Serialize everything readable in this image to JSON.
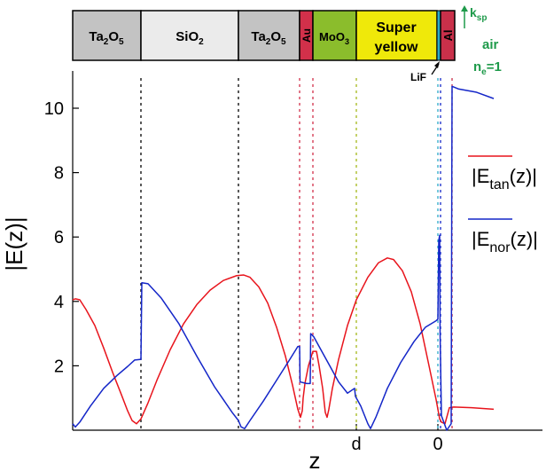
{
  "chart_data": {
    "type": "line",
    "xlabel": "z",
    "ylabel": "|E(z)|",
    "ylim": [
      0,
      11
    ],
    "yticks": [
      2,
      4,
      6,
      8,
      10
    ],
    "xtick_labels": [
      "d",
      "0"
    ],
    "layers": [
      {
        "name_main": "Ta",
        "sub1": "2",
        "mid": "O",
        "sub2": "5",
        "color": "#c3c3c3"
      },
      {
        "name_main": "SiO",
        "sub1": "2",
        "mid": "",
        "sub2": "",
        "color": "#ebebeb"
      },
      {
        "name_main": "Ta",
        "sub1": "2",
        "mid": "O",
        "sub2": "5",
        "color": "#c3c3c3"
      },
      {
        "name_main": "Au",
        "sub1": "",
        "mid": "",
        "sub2": "",
        "color": "#d2304a"
      },
      {
        "name_main": "MoO",
        "sub1": "3",
        "mid": "",
        "sub2": "",
        "color": "#8bbd2c"
      },
      {
        "name_main": "Super",
        "line2": "yellow",
        "color": "#efe90a"
      },
      {
        "name_main": "",
        "color": "#2aa9c8"
      },
      {
        "name_main": "Al",
        "color": "#c9304a"
      }
    ],
    "lif_label": "LiF",
    "air_label": "air",
    "k_label": "k",
    "k_sub": "sp",
    "n_label": "n",
    "n_sub": "e",
    "n_value": "=1",
    "legend": [
      {
        "name_main": "|E",
        "sub": "tan",
        "tail": "(z)|",
        "color": "#e8141c"
      },
      {
        "name_main": "|E",
        "sub": "nor",
        "tail": "(z)|",
        "color": "#1426c8"
      }
    ],
    "series": [
      {
        "key": "tan",
        "color": "#e8141c",
        "points": [
          [
            0,
            4.05
          ],
          [
            3,
            4.08
          ],
          [
            8,
            4.05
          ],
          [
            15,
            3.75
          ],
          [
            25,
            3.25
          ],
          [
            35,
            2.55
          ],
          [
            45,
            1.8
          ],
          [
            55,
            1.1
          ],
          [
            62,
            0.6
          ],
          [
            67,
            0.3
          ],
          [
            72,
            0.2
          ],
          [
            77,
            0.35
          ],
          [
            85,
            0.85
          ],
          [
            95,
            1.55
          ],
          [
            110,
            2.5
          ],
          [
            125,
            3.3
          ],
          [
            140,
            3.9
          ],
          [
            155,
            4.35
          ],
          [
            170,
            4.65
          ],
          [
            185,
            4.8
          ],
          [
            193,
            4.82
          ],
          [
            200,
            4.75
          ],
          [
            210,
            4.45
          ],
          [
            220,
            3.95
          ],
          [
            230,
            3.2
          ],
          [
            240,
            2.3
          ],
          [
            248,
            1.4
          ],
          [
            254,
            0.65
          ],
          [
            257,
            0.4
          ],
          [
            259,
            0.6
          ],
          [
            260,
            1.0
          ],
          [
            262,
            1.45
          ],
          [
            266,
            2.0
          ],
          [
            271,
            2.45
          ],
          [
            275,
            2.45
          ],
          [
            278,
            2.0
          ],
          [
            282,
            1.3
          ],
          [
            285,
            0.55
          ],
          [
            287,
            0.4
          ],
          [
            289,
            0.65
          ],
          [
            293,
            1.3
          ],
          [
            300,
            2.2
          ],
          [
            310,
            3.25
          ],
          [
            320,
            4.05
          ],
          [
            333,
            4.75
          ],
          [
            345,
            5.2
          ],
          [
            355,
            5.35
          ],
          [
            362,
            5.3
          ],
          [
            372,
            4.95
          ],
          [
            382,
            4.3
          ],
          [
            392,
            3.3
          ],
          [
            402,
            2.0
          ],
          [
            410,
            0.95
          ],
          [
            414,
            0.35
          ],
          [
            416,
            0.25
          ],
          [
            420,
            0.2
          ],
          [
            425,
            0.7
          ],
          [
            430,
            0.72
          ],
          [
            450,
            0.7
          ],
          [
            475,
            0.65
          ]
        ]
      },
      {
        "key": "nor",
        "color": "#1426c8",
        "points": [
          [
            0,
            0.2
          ],
          [
            3,
            0.1
          ],
          [
            8,
            0.25
          ],
          [
            20,
            0.75
          ],
          [
            35,
            1.3
          ],
          [
            50,
            1.7
          ],
          [
            62,
            1.98
          ],
          [
            70,
            2.18
          ],
          [
            77,
            2.2
          ],
          [
            78,
            4.58
          ],
          [
            85,
            4.55
          ],
          [
            100,
            4.1
          ],
          [
            120,
            3.3
          ],
          [
            140,
            2.3
          ],
          [
            160,
            1.35
          ],
          [
            180,
            0.55
          ],
          [
            187,
            0.3
          ],
          [
            190,
            0.1
          ],
          [
            194,
            0.05
          ],
          [
            200,
            0.3
          ],
          [
            215,
            0.9
          ],
          [
            230,
            1.55
          ],
          [
            245,
            2.2
          ],
          [
            254,
            2.6
          ],
          [
            256,
            2.6
          ],
          [
            256.5,
            1.5
          ],
          [
            264,
            1.45
          ],
          [
            268,
            1.45
          ],
          [
            268.5,
            3.0
          ],
          [
            272,
            2.9
          ],
          [
            280,
            2.5
          ],
          [
            290,
            2.0
          ],
          [
            300,
            1.5
          ],
          [
            310,
            1.15
          ],
          [
            318,
            1.3
          ],
          [
            319,
            1.05
          ],
          [
            325,
            0.75
          ],
          [
            333,
            0.2
          ],
          [
            336,
            0.05
          ],
          [
            342,
            0.4
          ],
          [
            355,
            1.3
          ],
          [
            370,
            2.1
          ],
          [
            385,
            2.75
          ],
          [
            398,
            3.2
          ],
          [
            410,
            3.4
          ],
          [
            412,
            3.45
          ],
          [
            413,
            5.9
          ],
          [
            414,
            6.05
          ],
          [
            414.5,
            3.0
          ],
          [
            416,
            0.45
          ],
          [
            422,
            0.0
          ],
          [
            427,
            0.2
          ],
          [
            428,
            10.68
          ],
          [
            435,
            10.6
          ],
          [
            455,
            10.5
          ],
          [
            475,
            10.3
          ]
        ]
      }
    ]
  }
}
